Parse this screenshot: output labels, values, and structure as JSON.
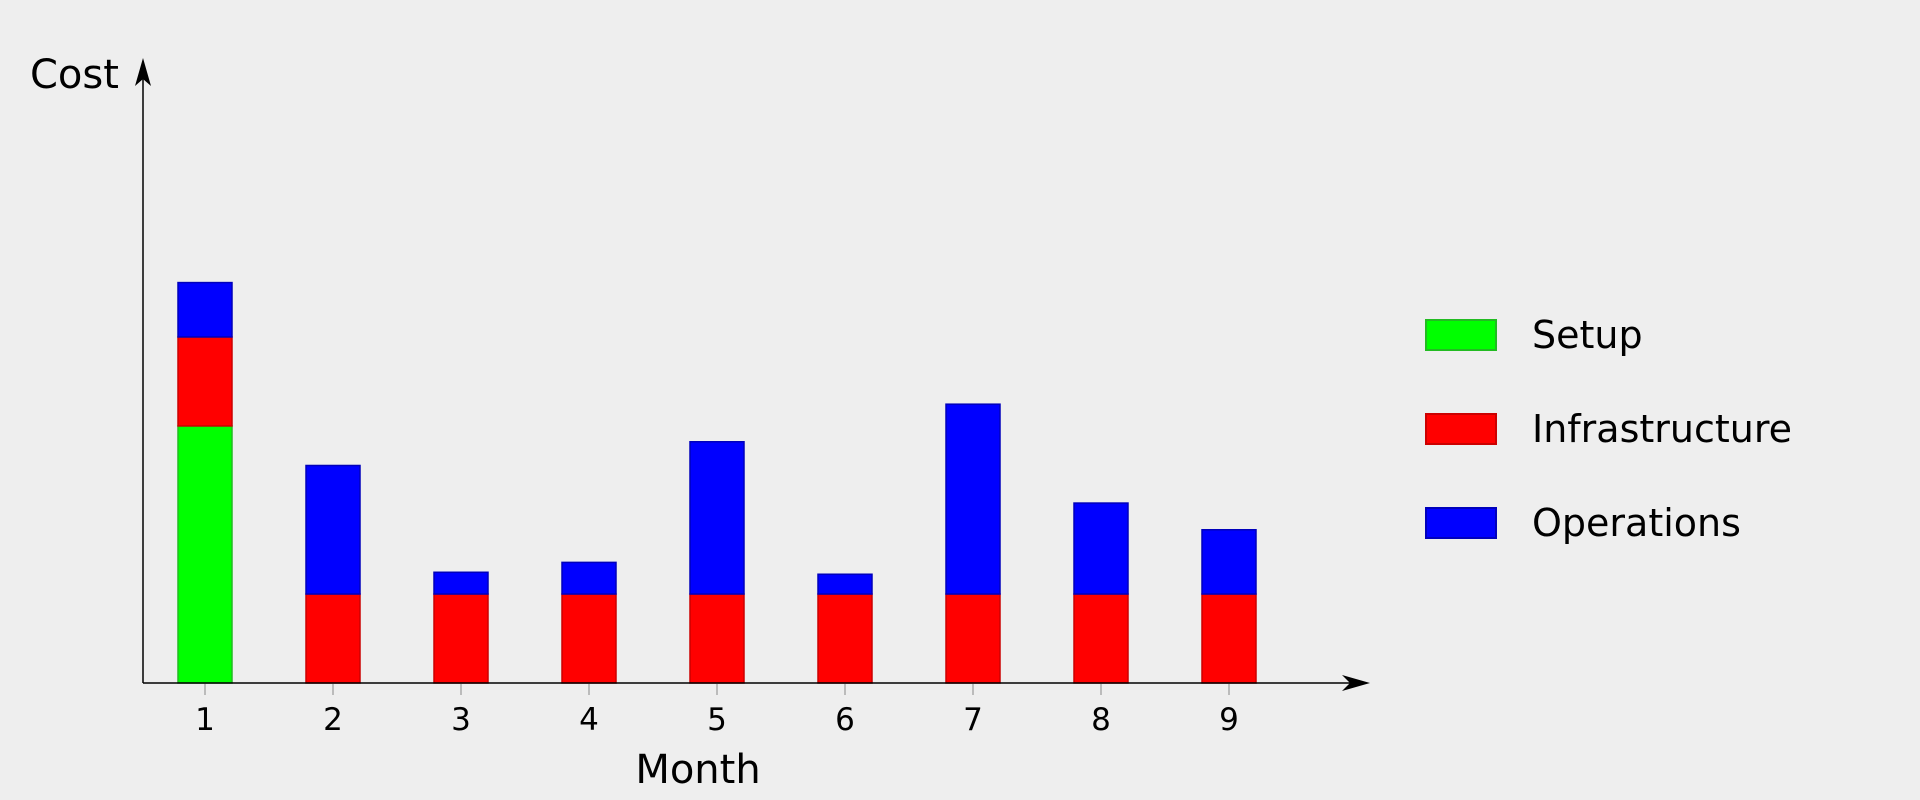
{
  "chart_data": {
    "type": "bar",
    "stacked": true,
    "xlabel": "Month",
    "ylabel": "Cost",
    "categories": [
      "1",
      "2",
      "3",
      "4",
      "5",
      "6",
      "7",
      "8",
      "9"
    ],
    "series": [
      {
        "name": "Setup",
        "color": "#00ff00",
        "border": "#22bb22",
        "values": [
          2.6,
          0,
          0,
          0,
          0,
          0,
          0,
          0,
          0
        ]
      },
      {
        "name": "Infrastructure",
        "color": "#ff0000",
        "border": "#cc0000",
        "values": [
          0.9,
          0.9,
          0.9,
          0.9,
          0.9,
          0.9,
          0.9,
          0.9,
          0.9
        ]
      },
      {
        "name": "Operations",
        "color": "#0000ff",
        "border": "#0000bb",
        "values": [
          0.55,
          1.3,
          0.22,
          0.32,
          1.54,
          0.2,
          1.92,
          0.92,
          0.65
        ]
      }
    ],
    "ylim": [
      0,
      6.2
    ],
    "grid": false,
    "y_ticks_shown": false,
    "legend_position": "right"
  }
}
